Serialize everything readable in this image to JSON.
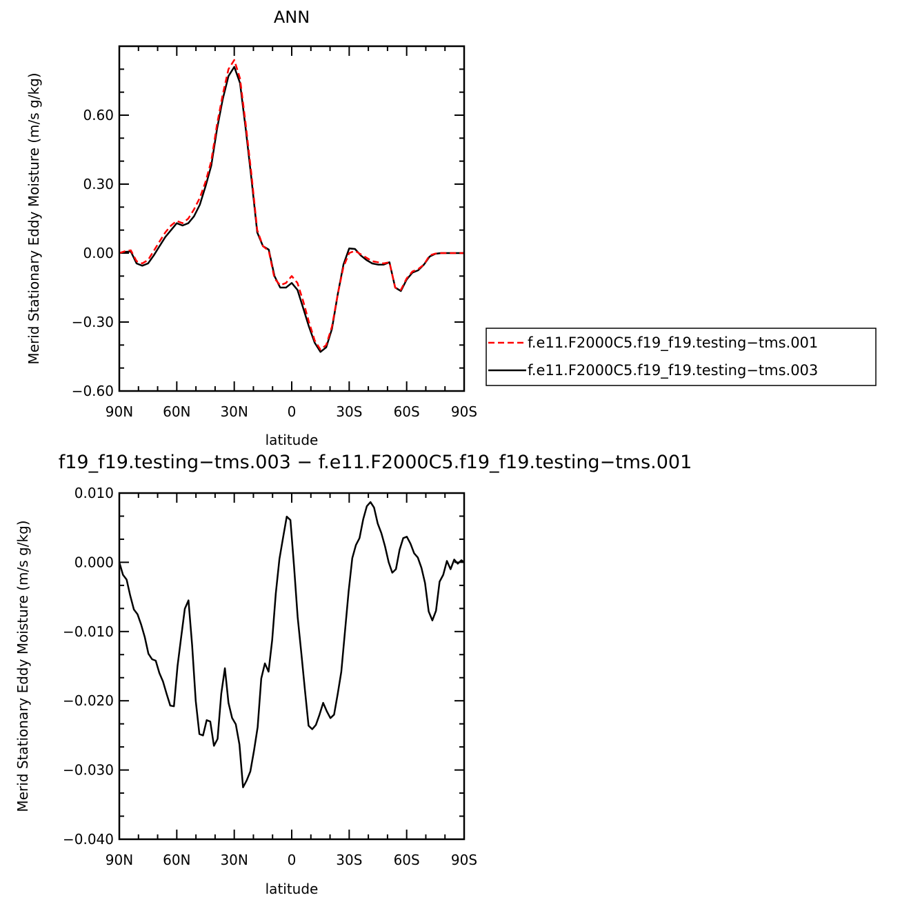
{
  "chart_data": [
    {
      "type": "line",
      "title": "ANN",
      "xlabel": "latitude",
      "ylabel": "Merid Stationary Eddy Moisture (m/s g/kg)",
      "xlim": [
        90,
        -90
      ],
      "ylim": [
        -0.6,
        0.9
      ],
      "x_ticks": [
        "90N",
        "60N",
        "30N",
        "0",
        "30S",
        "60S",
        "90S"
      ],
      "y_ticks": [
        "−0.60",
        "−0.30",
        "0.00",
        "0.30",
        "0.60"
      ],
      "x": [
        90,
        87,
        84,
        81,
        78,
        75,
        72,
        69,
        66,
        63,
        60,
        57,
        54,
        51,
        48,
        45,
        42,
        39,
        36,
        33,
        30,
        27,
        24,
        21,
        18,
        15,
        12,
        9,
        6,
        3,
        0,
        -3,
        -6,
        -9,
        -12,
        -15,
        -18,
        -21,
        -24,
        -27,
        -30,
        -33,
        -36,
        -39,
        -42,
        -45,
        -48,
        -51,
        -54,
        -57,
        -60,
        -63,
        -66,
        -69,
        -72,
        -75,
        -78,
        -81,
        -84,
        -87,
        -90
      ],
      "series": [
        {
          "name": "f.e11.F2000C5.f19_f19.testing−tms.001",
          "color": "#ff0000",
          "dash": "dashed",
          "values": [
            0.0,
            0.008,
            0.012,
            -0.035,
            -0.045,
            -0.03,
            0.01,
            0.05,
            0.09,
            0.12,
            0.14,
            0.13,
            0.15,
            0.19,
            0.24,
            0.31,
            0.4,
            0.56,
            0.69,
            0.8,
            0.84,
            0.76,
            0.56,
            0.34,
            0.1,
            0.03,
            0.01,
            -0.11,
            -0.14,
            -0.13,
            -0.1,
            -0.13,
            -0.21,
            -0.3,
            -0.38,
            -0.42,
            -0.4,
            -0.32,
            -0.18,
            -0.06,
            0.0,
            0.01,
            -0.005,
            -0.02,
            -0.035,
            -0.04,
            -0.045,
            -0.04,
            -0.15,
            -0.16,
            -0.11,
            -0.08,
            -0.07,
            -0.05,
            -0.01,
            -0.002,
            0.0,
            0.0,
            0.0,
            0.0,
            0.0
          ]
        },
        {
          "name": "f.e11.F2000C5.f19_f19.testing−tms.003",
          "color": "#000000",
          "dash": "solid",
          "values": [
            0.0,
            0.005,
            0.007,
            -0.045,
            -0.055,
            -0.045,
            -0.01,
            0.03,
            0.07,
            0.1,
            0.13,
            0.12,
            0.13,
            0.16,
            0.21,
            0.29,
            0.38,
            0.54,
            0.67,
            0.77,
            0.81,
            0.74,
            0.54,
            0.32,
            0.09,
            0.03,
            0.015,
            -0.1,
            -0.15,
            -0.15,
            -0.13,
            -0.16,
            -0.24,
            -0.32,
            -0.39,
            -0.43,
            -0.41,
            -0.33,
            -0.18,
            -0.05,
            0.02,
            0.018,
            -0.01,
            -0.03,
            -0.045,
            -0.05,
            -0.05,
            -0.04,
            -0.15,
            -0.165,
            -0.115,
            -0.085,
            -0.075,
            -0.05,
            -0.015,
            -0.003,
            0.0,
            0.0,
            0.0,
            0.0,
            0.0
          ]
        }
      ],
      "legend_position": "right-bottom"
    },
    {
      "type": "line",
      "title": "f19_f19.testing−tms.003 − f.e11.F2000C5.f19_f19.testing−tms.001",
      "xlabel": "latitude",
      "ylabel": "Merid Stationary Eddy Moisture (m/s g/kg)",
      "xlim": [
        90,
        -90
      ],
      "ylim": [
        -0.04,
        0.01
      ],
      "x_ticks": [
        "90N",
        "60N",
        "30N",
        "0",
        "30S",
        "60S",
        "90S"
      ],
      "y_ticks": [
        "−0.040",
        "−0.030",
        "−0.020",
        "−0.010",
        "0.000",
        "0.010"
      ],
      "series": [
        {
          "color": "#000000",
          "dash": "solid",
          "x": [
            90,
            88.1,
            86.2,
            84.3,
            82.4,
            80.5,
            78.6,
            76.7,
            74.8,
            72.9,
            71,
            69.1,
            67.2,
            65.3,
            63.4,
            61.5,
            59.6,
            57.7,
            55.8,
            53.9,
            52,
            50.1,
            48.2,
            46.3,
            44.4,
            42.5,
            40.6,
            38.7,
            36.8,
            34.9,
            33,
            31.1,
            29.2,
            27.3,
            25.4,
            23.5,
            21.6,
            19.7,
            17.8,
            15.9,
            14,
            12.1,
            10.2,
            8.3,
            6.4,
            4.5,
            2.6,
            0.7,
            -1.2,
            -3.1,
            -5,
            -6.9,
            -8.8,
            -10.7,
            -12.6,
            -14.5,
            -16.4,
            -18.3,
            -20.2,
            -22.1,
            -24,
            -25.9,
            -27.8,
            -29.7,
            -31.6,
            -33.5,
            -35.4,
            -37.3,
            -39.2,
            -41.1,
            -43,
            -44.9,
            -46.8,
            -48.7,
            -50.6,
            -52.5,
            -54.4,
            -56.3,
            -58.2,
            -60.1,
            -62,
            -63.9,
            -65.8,
            -67.7,
            -69.6,
            -71.5,
            -73.4,
            -75.3,
            -77.2,
            -79.1,
            -81,
            -82.9,
            -84.8,
            -86.7,
            -88.6,
            -90
          ],
          "values": [
            0.0,
            -0.0018,
            -0.0025,
            -0.0048,
            -0.0068,
            -0.0075,
            -0.009,
            -0.0108,
            -0.0132,
            -0.014,
            -0.0142,
            -0.016,
            -0.0172,
            -0.019,
            -0.0207,
            -0.0208,
            -0.015,
            -0.0108,
            -0.0067,
            -0.0055,
            -0.012,
            -0.02,
            -0.0248,
            -0.025,
            -0.0228,
            -0.023,
            -0.0265,
            -0.0255,
            -0.019,
            -0.0153,
            -0.0203,
            -0.0225,
            -0.0234,
            -0.0263,
            -0.0325,
            -0.0315,
            -0.0302,
            -0.0272,
            -0.0238,
            -0.0168,
            -0.0146,
            -0.0158,
            -0.0112,
            -0.0045,
            0.0005,
            0.0036,
            0.0066,
            0.0061,
            -0.0005,
            -0.0079,
            -0.0131,
            -0.0185,
            -0.0236,
            -0.0241,
            -0.0235,
            -0.022,
            -0.0203,
            -0.0215,
            -0.0225,
            -0.022,
            -0.019,
            -0.0158,
            -0.01,
            -0.0042,
            0.0006,
            0.0025,
            0.0035,
            0.0062,
            0.0081,
            0.0087,
            0.0079,
            0.0056,
            0.0042,
            0.0023,
            0.0,
            -0.0015,
            -0.001,
            0.0018,
            0.0035,
            0.0037,
            0.0027,
            0.0013,
            0.0007,
            -0.0008,
            -0.003,
            -0.0071,
            -0.0084,
            -0.007,
            -0.0028,
            -0.0018,
            0.0002,
            -0.001,
            0.0004,
            -0.0002,
            0.0003,
            0.0
          ]
        }
      ]
    }
  ]
}
